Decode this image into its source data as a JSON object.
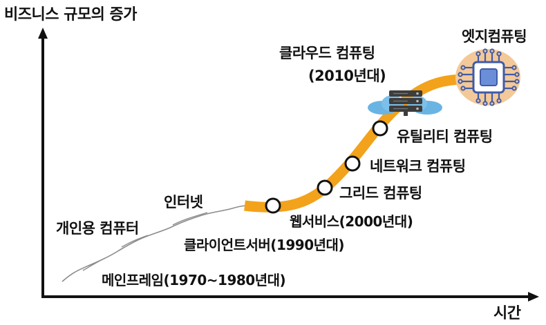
{
  "axes": {
    "y_label": "비즈니스 규모의 증가",
    "x_label": "시간"
  },
  "eras": {
    "mainframe": "메인프레임(1970~1980년대)",
    "personal_computer": "개인용 컴퓨터",
    "internet": "인터넷",
    "client_server": "클라이언트서버(1990년대)",
    "web_service": "웹서비스(2000년대)",
    "grid_computing": "그리드 컴퓨팅",
    "network_computing": "네트워크 컴퓨팅",
    "utility_computing": "유틸리티 컴퓨팅",
    "cloud_computing": {
      "name": "클라우드 컴퓨팅",
      "period": "(2010년대)"
    },
    "edge_computing": "엣지컴퓨팅"
  },
  "colors": {
    "curve": "#f2a21b",
    "node_fill": "#ffffff",
    "node_stroke": "#111111",
    "axis": "#111111",
    "cloud": "#6ab4e3",
    "server": "#3d3d3d",
    "chip_bg": "#f3c999",
    "chip": "#3f5aa8"
  },
  "icons": {
    "cloud": "cloud-server-icon",
    "chip": "edge-chip-icon"
  }
}
